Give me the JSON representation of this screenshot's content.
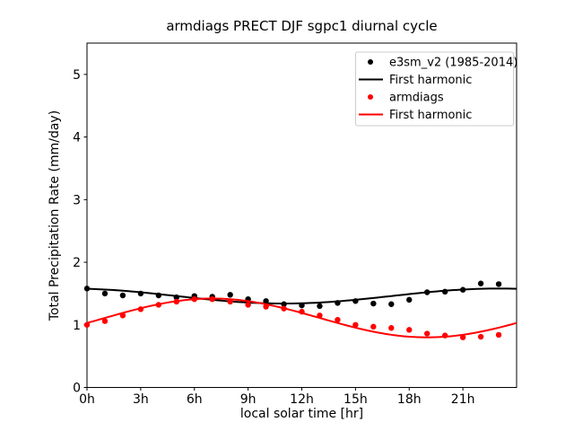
{
  "figure": {
    "background": "#ffffff"
  },
  "chart_data": {
    "type": "scatter+line",
    "title": "armdiags PRECT DJF sgpc1 diurnal cycle",
    "xlabel": "local solar time [hr]",
    "ylabel": "Total Precipitation Rate (mm/day)",
    "xlim": [
      0,
      24
    ],
    "ylim": [
      0,
      5.5
    ],
    "grid": false,
    "axes_color": "#000000",
    "x_ticks": [
      {
        "hour": 0,
        "label": "0h"
      },
      {
        "hour": 3,
        "label": "3h"
      },
      {
        "hour": 6,
        "label": "6h"
      },
      {
        "hour": 9,
        "label": "9h"
      },
      {
        "hour": 12,
        "label": "12h"
      },
      {
        "hour": 15,
        "label": "15h"
      },
      {
        "hour": 18,
        "label": "18h"
      },
      {
        "hour": 21,
        "label": "21h"
      }
    ],
    "y_ticks": [
      {
        "value": 0,
        "label": "0"
      },
      {
        "value": 1,
        "label": "1"
      },
      {
        "value": 2,
        "label": "2"
      },
      {
        "value": 3,
        "label": "3"
      },
      {
        "value": 4,
        "label": "4"
      },
      {
        "value": 5,
        "label": "5"
      }
    ],
    "hours": [
      0,
      1,
      2,
      3,
      4,
      5,
      6,
      7,
      8,
      9,
      10,
      11,
      12,
      13,
      14,
      15,
      16,
      17,
      18,
      19,
      20,
      21,
      22,
      23
    ],
    "series": [
      {
        "name": "e3sm_v2 (1985-2014)",
        "style": "scatter",
        "color": "#000000",
        "values": [
          1.58,
          1.5,
          1.47,
          1.5,
          1.47,
          1.44,
          1.46,
          1.45,
          1.48,
          1.41,
          1.38,
          1.33,
          1.31,
          1.3,
          1.35,
          1.38,
          1.34,
          1.33,
          1.4,
          1.52,
          1.53,
          1.56,
          1.66,
          1.65
        ]
      },
      {
        "name": "First harmonic",
        "style": "line",
        "color": "#000000",
        "harmonic": {
          "mean": 1.46,
          "amplitude": 0.12,
          "peak_hour": 23.0
        }
      },
      {
        "name": "armdiags",
        "style": "scatter",
        "color": "#ff0000",
        "values": [
          1.0,
          1.06,
          1.15,
          1.25,
          1.32,
          1.37,
          1.41,
          1.41,
          1.37,
          1.32,
          1.29,
          1.26,
          1.21,
          1.15,
          1.08,
          1.0,
          0.97,
          0.95,
          0.92,
          0.86,
          0.83,
          0.8,
          0.81,
          0.84
        ]
      },
      {
        "name": "First harmonic",
        "style": "line",
        "color": "#ff0000",
        "harmonic": {
          "mean": 1.11,
          "amplitude": 0.31,
          "peak_hour": 7.0
        }
      }
    ],
    "legend": {
      "position": "upper right"
    }
  }
}
